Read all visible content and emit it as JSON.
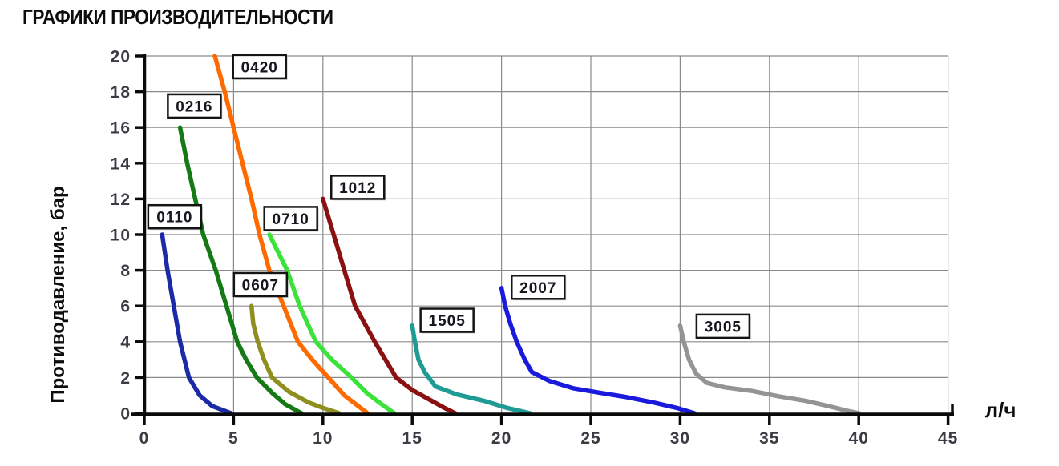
{
  "title": "ГРАФИКИ ПРОИЗВОДИТЕЛЬНОСТИ",
  "chart_data": {
    "type": "line",
    "title": "ГРАФИКИ ПРОИЗВОДИТЕЛЬНОСТИ",
    "xlabel": "л/ч",
    "ylabel": "Противодавление, бар",
    "xlim": [
      0,
      45
    ],
    "ylim": [
      0,
      20
    ],
    "x_ticks": [
      0,
      5,
      10,
      15,
      20,
      25,
      30,
      35,
      40,
      45
    ],
    "y_ticks": [
      0,
      2,
      4,
      6,
      8,
      10,
      12,
      14,
      16,
      18,
      20
    ],
    "grid": true,
    "legend_position": "boxed-labels-inline",
    "colors": {
      "axis": "#0a0a0a",
      "grid": "#8a8a8a",
      "tick_labels": "#3b3b43",
      "label_box_bg": "#ffffff",
      "label_box_border": "#141414"
    },
    "series": [
      {
        "name": "0110",
        "color": "#1b2aa6",
        "label_pos": [
          1.7,
          11.0
        ],
        "points": [
          [
            1,
            10
          ],
          [
            1.3,
            8
          ],
          [
            1.65,
            6
          ],
          [
            2.0,
            4
          ],
          [
            2.5,
            2
          ],
          [
            3.1,
            1.0
          ],
          [
            3.8,
            0.4
          ],
          [
            4.85,
            0
          ]
        ]
      },
      {
        "name": "0216",
        "color": "#157a15",
        "label_pos": [
          2.8,
          17.2
        ],
        "points": [
          [
            2,
            16
          ],
          [
            2.4,
            14
          ],
          [
            2.85,
            12
          ],
          [
            3.3,
            10
          ],
          [
            4.0,
            8
          ],
          [
            4.6,
            6
          ],
          [
            5.2,
            4
          ],
          [
            5.7,
            3
          ],
          [
            6.3,
            2
          ],
          [
            7.2,
            1.1
          ],
          [
            7.9,
            0.5
          ],
          [
            8.8,
            0
          ]
        ]
      },
      {
        "name": "0420",
        "color": "#ff6a00",
        "label_pos": [
          6.45,
          19.4
        ],
        "points": [
          [
            3.95,
            20
          ],
          [
            4.5,
            18
          ],
          [
            5.0,
            16
          ],
          [
            5.5,
            14
          ],
          [
            6.0,
            12
          ],
          [
            6.45,
            10
          ],
          [
            7.0,
            8
          ],
          [
            7.8,
            6
          ],
          [
            8.6,
            4
          ],
          [
            9.4,
            3
          ],
          [
            10.3,
            2
          ],
          [
            11.2,
            1.0
          ],
          [
            12.5,
            0
          ]
        ]
      },
      {
        "name": "0607",
        "color": "#8f8f1f",
        "label_pos": [
          6.5,
          7.2
        ],
        "points": [
          [
            6,
            6
          ],
          [
            6.1,
            5
          ],
          [
            6.35,
            4
          ],
          [
            6.7,
            3
          ],
          [
            7.15,
            2
          ],
          [
            8.1,
            1.2
          ],
          [
            9.2,
            0.6
          ],
          [
            10.0,
            0.3
          ],
          [
            10.9,
            0
          ]
        ]
      },
      {
        "name": "0710",
        "color": "#3ae23a",
        "label_pos": [
          8.2,
          10.9
        ],
        "points": [
          [
            7,
            10
          ],
          [
            7.5,
            9
          ],
          [
            8.0,
            8
          ],
          [
            8.7,
            6
          ],
          [
            9.6,
            4
          ],
          [
            10.5,
            3
          ],
          [
            11.6,
            2
          ],
          [
            12.5,
            1.1
          ],
          [
            13.3,
            0.5
          ],
          [
            14.0,
            0
          ]
        ]
      },
      {
        "name": "1012",
        "color": "#8b1012",
        "label_pos": [
          11.95,
          12.65
        ],
        "points": [
          [
            10,
            12
          ],
          [
            10.6,
            10
          ],
          [
            11.2,
            8
          ],
          [
            11.8,
            6
          ],
          [
            12.9,
            4
          ],
          [
            13.5,
            3
          ],
          [
            14.1,
            2
          ],
          [
            15.0,
            1.3
          ],
          [
            15.9,
            0.8
          ],
          [
            16.8,
            0.3
          ],
          [
            17.4,
            0
          ]
        ]
      },
      {
        "name": "1505",
        "color": "#1f9b93",
        "label_pos": [
          16.95,
          5.2
        ],
        "points": [
          [
            15,
            4.9
          ],
          [
            15.15,
            4
          ],
          [
            15.35,
            3
          ],
          [
            15.7,
            2.3
          ],
          [
            16.3,
            1.5
          ],
          [
            17.5,
            1.05
          ],
          [
            19.0,
            0.7
          ],
          [
            20.3,
            0.3
          ],
          [
            21.6,
            0
          ]
        ]
      },
      {
        "name": "2007",
        "color": "#1a1add",
        "label_pos": [
          22.05,
          7.05
        ],
        "points": [
          [
            20,
            7
          ],
          [
            20.2,
            6
          ],
          [
            20.5,
            5
          ],
          [
            20.85,
            4
          ],
          [
            21.3,
            3
          ],
          [
            21.7,
            2.3
          ],
          [
            22.7,
            1.8
          ],
          [
            24.0,
            1.4
          ],
          [
            25.5,
            1.15
          ],
          [
            27.0,
            0.9
          ],
          [
            28.5,
            0.6
          ],
          [
            29.8,
            0.3
          ],
          [
            30.8,
            0
          ]
        ]
      },
      {
        "name": "3005",
        "color": "#949494",
        "label_pos": [
          32.4,
          4.87
        ],
        "points": [
          [
            30,
            4.9
          ],
          [
            30.2,
            4
          ],
          [
            30.5,
            3
          ],
          [
            30.9,
            2.2
          ],
          [
            31.5,
            1.7
          ],
          [
            32.5,
            1.45
          ],
          [
            34.0,
            1.25
          ],
          [
            35.5,
            0.95
          ],
          [
            37.0,
            0.7
          ],
          [
            38.3,
            0.4
          ],
          [
            39.3,
            0.15
          ],
          [
            40.0,
            0
          ]
        ]
      }
    ]
  }
}
